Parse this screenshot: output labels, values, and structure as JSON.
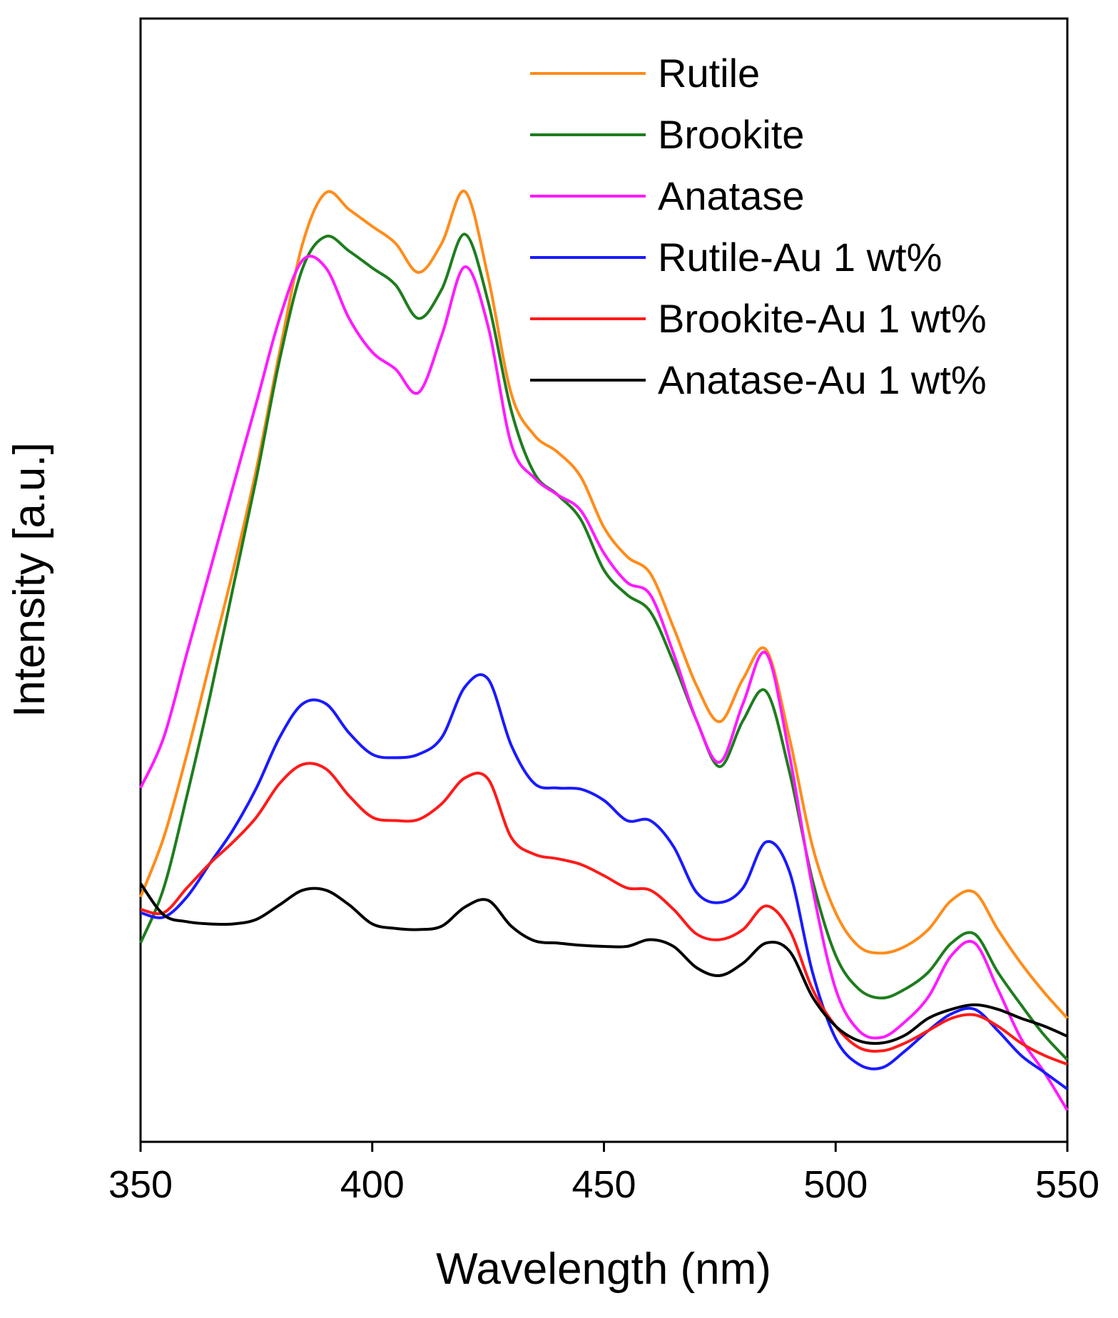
{
  "chart_data": {
    "type": "line",
    "xlabel": "Wavelength (nm)",
    "ylabel": "Intensity [a.u.]",
    "x": [
      350,
      355,
      360,
      365,
      370,
      375,
      380,
      385,
      390,
      395,
      400,
      405,
      410,
      415,
      420,
      425,
      430,
      435,
      440,
      445,
      450,
      455,
      460,
      465,
      470,
      475,
      480,
      485,
      490,
      495,
      500,
      505,
      510,
      515,
      520,
      525,
      530,
      535,
      540,
      545,
      550
    ],
    "xlim": [
      350,
      550
    ],
    "xticks": [
      350,
      400,
      450,
      500,
      550
    ],
    "ylim": [
      0,
      100
    ],
    "legend": "upper-right",
    "series": [
      {
        "name": "Rutile",
        "color": "#ff8c1a",
        "values": [
          21.8,
          27.1,
          34.5,
          42.7,
          50.9,
          59.9,
          70.3,
          80.0,
          84.5,
          83.0,
          81.5,
          80.0,
          77.4,
          80.0,
          84.6,
          77.0,
          66.6,
          62.9,
          61.4,
          59.2,
          54.7,
          52.1,
          50.6,
          45.8,
          40.6,
          37.4,
          41.2,
          43.8,
          36.0,
          26.3,
          20.4,
          17.4,
          16.8,
          17.4,
          18.9,
          21.5,
          22.2,
          18.9,
          15.9,
          13.3,
          11.0
        ]
      },
      {
        "name": "Brookite",
        "color": "#1e7d1e",
        "values": [
          17.7,
          22.6,
          30.8,
          39.7,
          49.4,
          59.1,
          69.6,
          77.8,
          80.6,
          79.3,
          77.8,
          76.3,
          73.3,
          75.9,
          80.8,
          74.8,
          65.1,
          59.5,
          57.6,
          55.4,
          50.9,
          48.7,
          47.2,
          42.7,
          37.5,
          33.4,
          37.5,
          40.1,
          33.0,
          23.3,
          16.6,
          13.6,
          12.8,
          13.6,
          15.1,
          17.7,
          18.5,
          15.1,
          12.2,
          9.5,
          7.3
        ]
      },
      {
        "name": "Anatase",
        "color": "#ff1aff",
        "values": [
          31.5,
          36.0,
          43.5,
          50.9,
          58.4,
          65.8,
          73.3,
          78.5,
          77.8,
          73.3,
          70.3,
          68.8,
          66.7,
          71.8,
          77.9,
          72.6,
          62.1,
          59.1,
          57.6,
          56.2,
          52.4,
          49.8,
          48.7,
          43.5,
          37.5,
          33.8,
          39.0,
          43.5,
          34.5,
          22.6,
          13.6,
          9.9,
          9.3,
          10.7,
          12.9,
          16.6,
          17.7,
          13.6,
          9.2,
          6.2,
          2.8
        ]
      },
      {
        "name": "Rutile-Au 1 wt%",
        "color": "#1a1aff",
        "values": [
          20.4,
          20.0,
          21.8,
          24.8,
          27.8,
          31.5,
          36.0,
          39.0,
          39.0,
          36.4,
          34.5,
          34.2,
          34.5,
          36.0,
          40.5,
          41.2,
          35.3,
          31.9,
          31.5,
          31.4,
          30.4,
          28.6,
          28.6,
          26.3,
          22.2,
          21.3,
          22.6,
          26.7,
          24.1,
          15.1,
          9.2,
          6.9,
          6.6,
          8.1,
          9.9,
          11.4,
          11.8,
          9.9,
          7.7,
          6.2,
          4.7
        ]
      },
      {
        "name": "Brookite-Au 1 wt%",
        "color": "#ff1a1a",
        "values": [
          20.7,
          20.4,
          22.6,
          24.8,
          26.7,
          28.9,
          31.9,
          33.6,
          33.2,
          30.8,
          28.9,
          28.6,
          28.7,
          30.1,
          32.4,
          32.3,
          27.1,
          25.6,
          25.2,
          24.7,
          23.7,
          22.6,
          22.4,
          20.7,
          18.5,
          18.0,
          18.9,
          21.0,
          18.9,
          13.6,
          10.3,
          8.4,
          8.1,
          8.8,
          9.9,
          11.0,
          11.3,
          10.3,
          8.8,
          7.7,
          6.9
        ]
      },
      {
        "name": "Anatase-Au 1 wt%",
        "color": "#000000",
        "values": [
          23.0,
          20.2,
          19.6,
          19.4,
          19.4,
          19.8,
          21.1,
          22.4,
          22.4,
          21.1,
          19.4,
          19.0,
          18.9,
          19.2,
          20.9,
          21.5,
          19.2,
          17.9,
          17.7,
          17.5,
          17.4,
          17.4,
          18.0,
          17.4,
          15.5,
          14.8,
          15.9,
          17.7,
          17.0,
          12.9,
          10.3,
          9.0,
          8.8,
          9.5,
          11.0,
          11.8,
          12.2,
          11.8,
          11.0,
          10.3,
          9.4
        ]
      }
    ]
  }
}
